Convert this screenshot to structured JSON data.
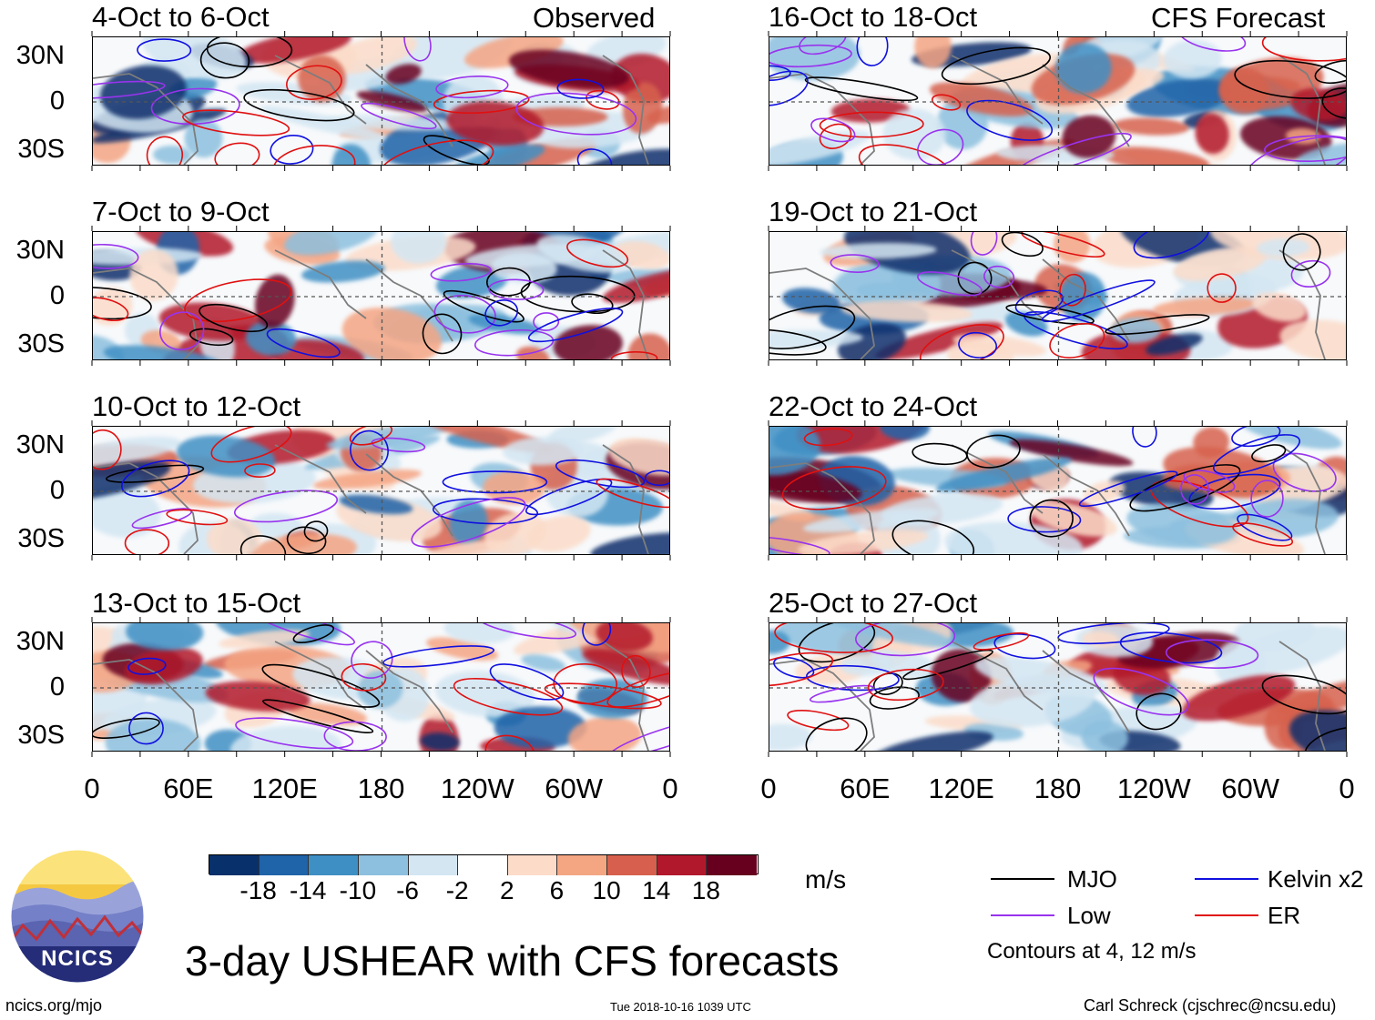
{
  "chart_data": {
    "type": "heatmap",
    "title": "3-day USHEAR with CFS forecasts",
    "units": "m/s",
    "columns": [
      {
        "header": "Observed",
        "panels": [
          "4-Oct to 6-Oct",
          "7-Oct to 9-Oct",
          "10-Oct to 12-Oct",
          "13-Oct to 15-Oct"
        ]
      },
      {
        "header": "CFS Forecast",
        "panels": [
          "16-Oct to 18-Oct",
          "19-Oct to 21-Oct",
          "22-Oct to 24-Oct",
          "25-Oct to 27-Oct"
        ]
      }
    ],
    "lat_ticks": [
      "30N",
      "0",
      "30S"
    ],
    "lon_ticks": [
      "0",
      "60E",
      "120E",
      "180",
      "120W",
      "60W",
      "0"
    ],
    "colorbar": {
      "ticks": [
        "-18",
        "-14",
        "-10",
        "-6",
        "-2",
        "2",
        "6",
        "10",
        "14",
        "18"
      ],
      "colors": [
        "#08306b",
        "#1f63a8",
        "#3e8fc4",
        "#8cc0de",
        "#d3e6f2",
        "#ffffff",
        "#fcdcc9",
        "#f4a582",
        "#d6604d",
        "#b2182b",
        "#67001f"
      ]
    },
    "legend": [
      {
        "label": "MJO",
        "color": "#000000"
      },
      {
        "label": "Kelvin x2",
        "color": "#1010e0"
      },
      {
        "label": "Low",
        "color": "#9933ee"
      },
      {
        "label": "ER",
        "color": "#e01010"
      }
    ],
    "contour_note": "Contours at 4, 12 m/s"
  },
  "footer": {
    "logo_text": "NCICS",
    "site": "ncics.org/mjo",
    "timestamp": "Tue 2018-10-16 1039 UTC",
    "author": "Carl Schreck (cjschrec@ncsu.edu)"
  }
}
